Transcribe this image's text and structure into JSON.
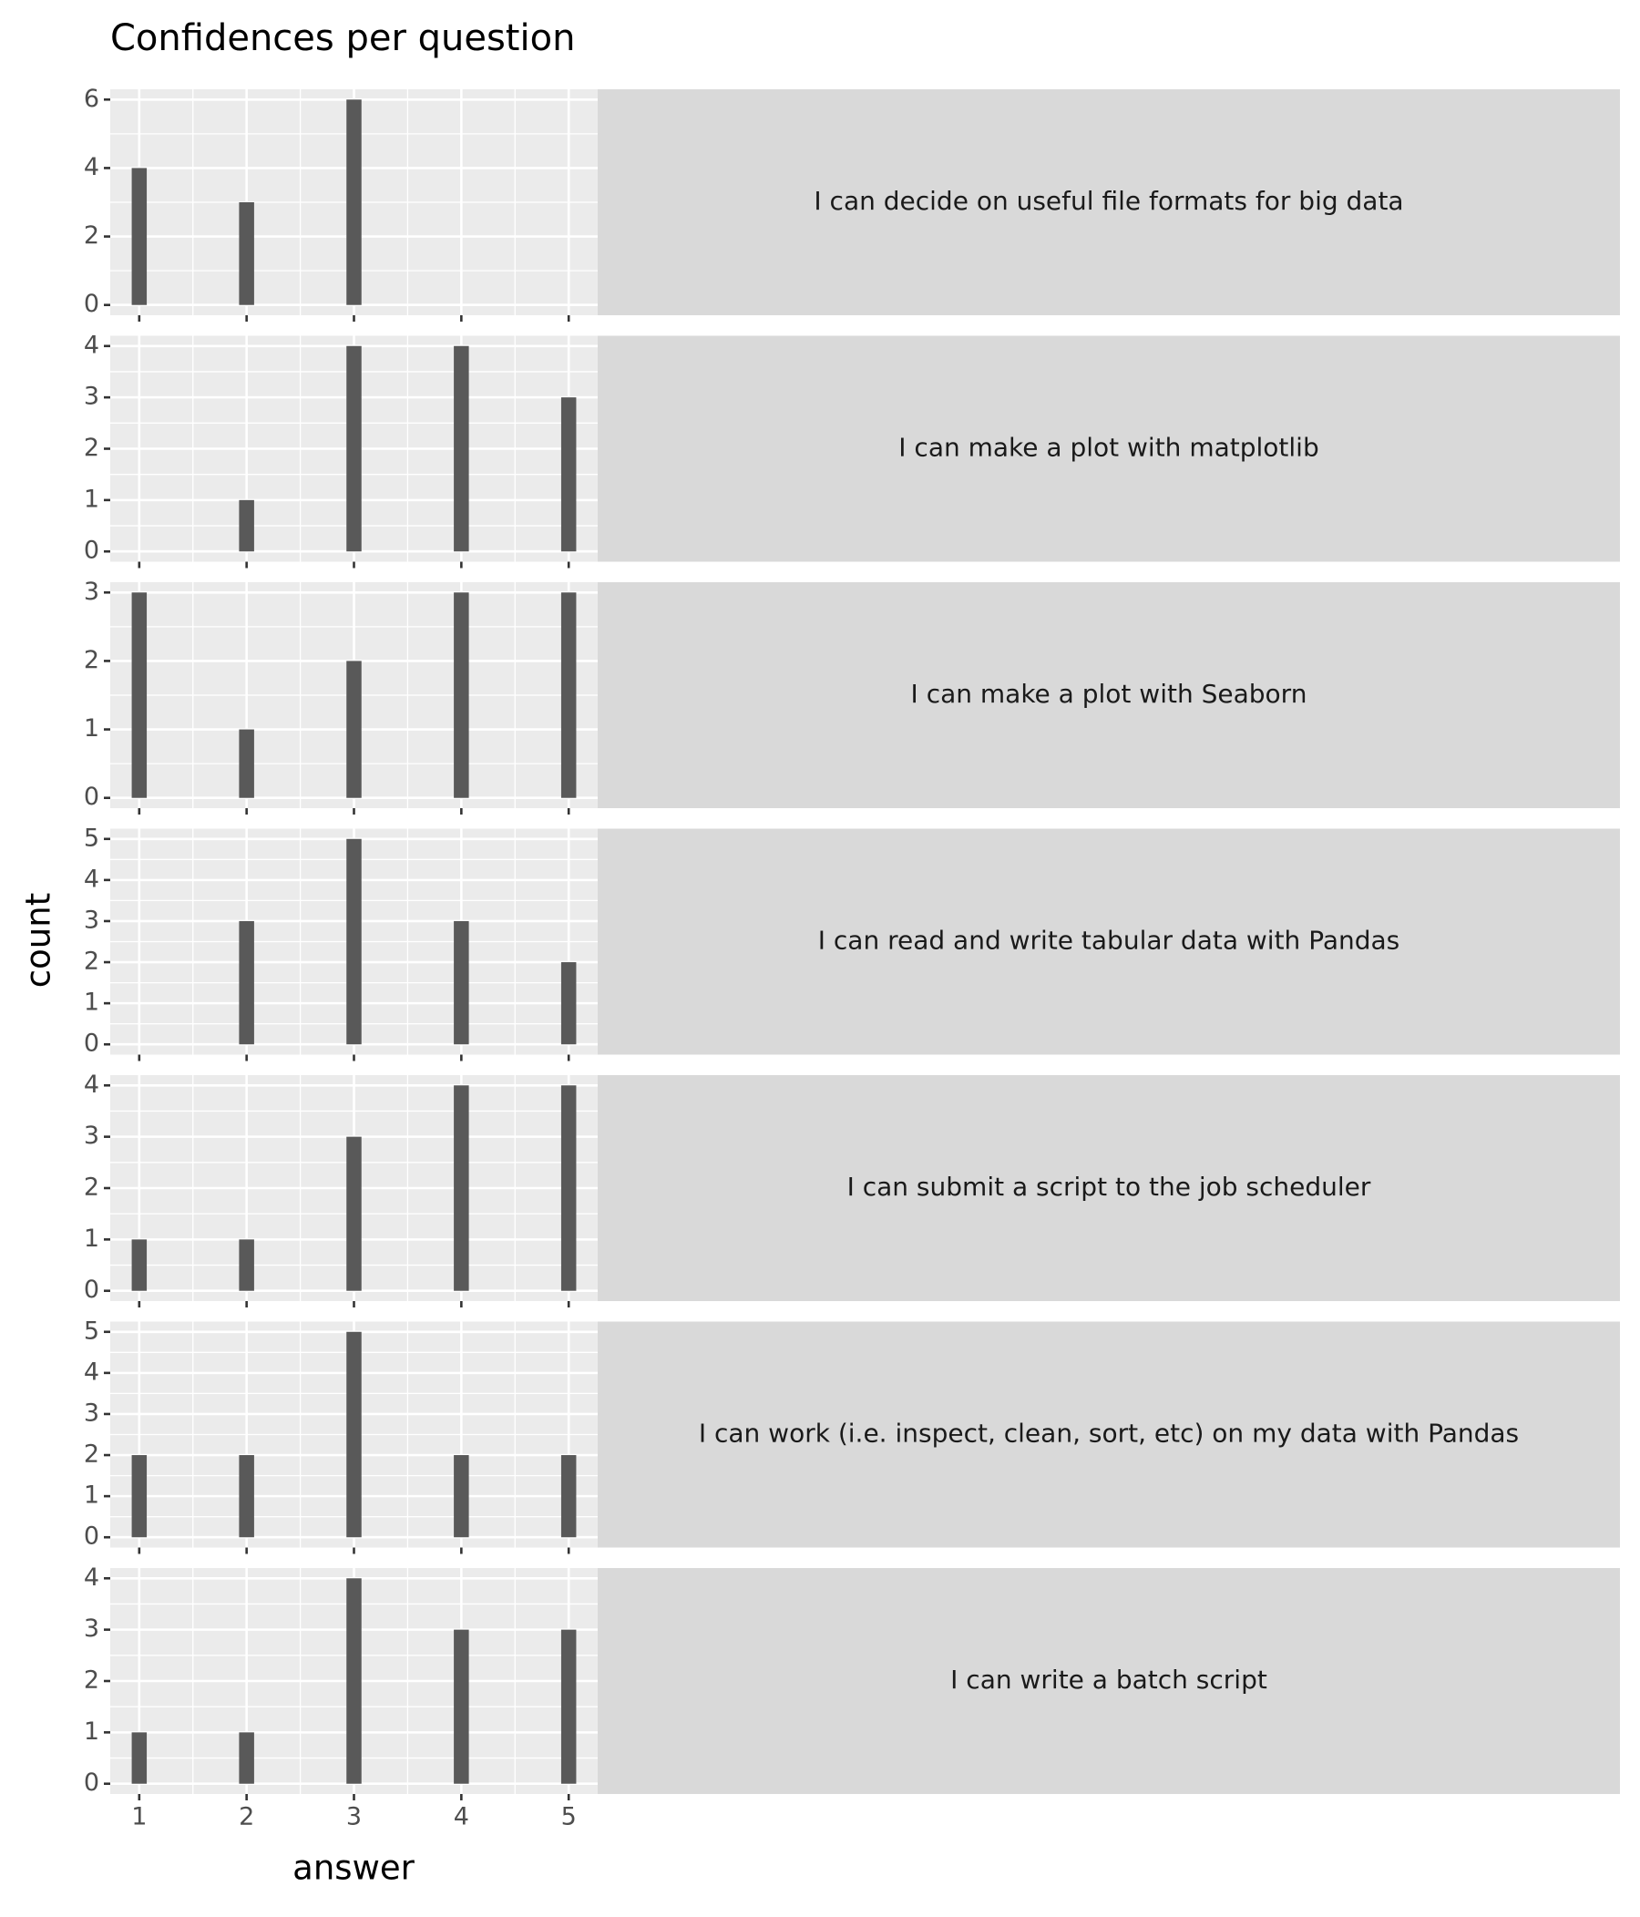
{
  "chart_data": {
    "type": "bar",
    "title": "Confidences per question",
    "xlabel": "answer",
    "ylabel": "count",
    "xlim": [
      0.73,
      5.27
    ],
    "xticks": [
      1,
      2,
      3,
      4,
      5
    ],
    "color": "#595959",
    "grid": true,
    "panels": [
      {
        "label": "I can decide on useful file formats for big data",
        "x": [
          1,
          2,
          3,
          4,
          5
        ],
        "values": [
          4,
          3,
          6,
          0,
          0
        ],
        "ylim": [
          -0.3,
          6.3
        ],
        "yticks": [
          0,
          2,
          4,
          6
        ]
      },
      {
        "label": "I can make a plot with matplotlib",
        "x": [
          1,
          2,
          3,
          4,
          5
        ],
        "values": [
          0,
          1,
          4,
          4,
          3
        ],
        "ylim": [
          -0.2,
          4.2
        ],
        "yticks": [
          0,
          1,
          2,
          3,
          4
        ]
      },
      {
        "label": "I can make a plot with Seaborn",
        "x": [
          1,
          2,
          3,
          4,
          5
        ],
        "values": [
          3,
          1,
          2,
          3,
          3
        ],
        "ylim": [
          -0.15,
          3.15
        ],
        "yticks": [
          0,
          1,
          2,
          3
        ]
      },
      {
        "label": "I can read and write tabular data with Pandas",
        "x": [
          1,
          2,
          3,
          4,
          5
        ],
        "values": [
          0,
          3,
          5,
          3,
          2
        ],
        "ylim": [
          -0.25,
          5.25
        ],
        "yticks": [
          0,
          1,
          2,
          3,
          4,
          5
        ]
      },
      {
        "label": "I can submit a script to the job scheduler",
        "x": [
          1,
          2,
          3,
          4,
          5
        ],
        "values": [
          1,
          1,
          3,
          4,
          4
        ],
        "ylim": [
          -0.2,
          4.2
        ],
        "yticks": [
          0,
          1,
          2,
          3,
          4
        ]
      },
      {
        "label": "I can work (i.e. inspect, clean, sort, etc) on my data with Pandas",
        "x": [
          1,
          2,
          3,
          4,
          5
        ],
        "values": [
          2,
          2,
          5,
          2,
          2
        ],
        "ylim": [
          -0.25,
          5.25
        ],
        "yticks": [
          0,
          1,
          2,
          3,
          4,
          5
        ]
      },
      {
        "label": "I can write a batch script",
        "x": [
          1,
          2,
          3,
          4,
          5
        ],
        "values": [
          1,
          1,
          4,
          3,
          3
        ],
        "ylim": [
          -0.2,
          4.2
        ],
        "yticks": [
          0,
          1,
          2,
          3,
          4
        ]
      }
    ]
  }
}
